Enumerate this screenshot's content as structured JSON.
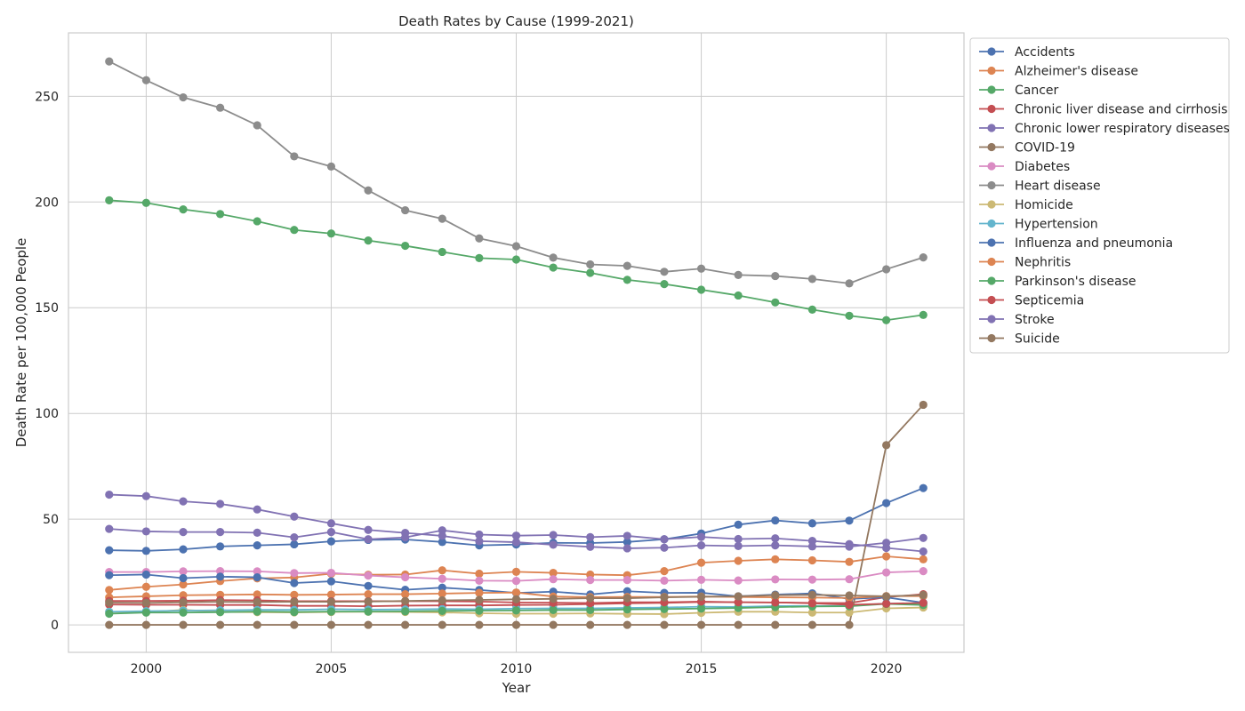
{
  "chart_data": {
    "type": "line",
    "title": "Death Rates by Cause (1999-2021)",
    "xlabel": "Year",
    "ylabel": "Death Rate per 100,000 People",
    "xlim": [
      1997.9,
      2022.1
    ],
    "ylim": [
      -13,
      280
    ],
    "x_ticks": [
      2000,
      2005,
      2010,
      2015,
      2020
    ],
    "y_ticks": [
      0,
      50,
      100,
      150,
      200,
      250
    ],
    "grid": true,
    "legend_position": "outside upper right",
    "x": [
      1999,
      2000,
      2001,
      2002,
      2003,
      2004,
      2005,
      2006,
      2007,
      2008,
      2009,
      2010,
      2011,
      2012,
      2013,
      2014,
      2015,
      2016,
      2017,
      2018,
      2019,
      2020,
      2021
    ],
    "series": [
      {
        "name": "Accidents",
        "color": "#4c72b0",
        "values": [
          35.3,
          35.0,
          35.7,
          37.1,
          37.6,
          38.1,
          39.5,
          40.2,
          40.4,
          39.2,
          37.6,
          38.0,
          38.8,
          38.7,
          39.2,
          40.5,
          43.2,
          47.4,
          49.4,
          48.0,
          49.3,
          57.6,
          64.7
        ]
      },
      {
        "name": "Alzheimer's disease",
        "color": "#dd8452",
        "values": [
          16.5,
          18.0,
          19.1,
          20.7,
          22.0,
          22.4,
          24.2,
          23.7,
          23.8,
          25.8,
          24.2,
          25.1,
          24.6,
          23.8,
          23.5,
          25.4,
          29.4,
          30.3,
          31.0,
          30.5,
          29.8,
          32.4,
          31.0
        ]
      },
      {
        "name": "Cancer",
        "color": "#55a868",
        "values": [
          200.8,
          199.6,
          196.5,
          194.3,
          190.9,
          186.8,
          185.1,
          181.8,
          179.3,
          176.4,
          173.5,
          172.8,
          169.0,
          166.5,
          163.2,
          161.2,
          158.5,
          155.8,
          152.5,
          149.1,
          146.2,
          144.1,
          146.6
        ]
      },
      {
        "name": "Chronic liver disease and cirrhosis",
        "color": "#c44e52",
        "values": [
          9.6,
          9.5,
          9.5,
          9.4,
          9.4,
          9.0,
          9.0,
          8.8,
          9.1,
          9.2,
          9.2,
          9.4,
          9.5,
          9.8,
          10.2,
          10.4,
          10.8,
          10.7,
          10.6,
          10.4,
          10.3,
          13.1,
          14.5
        ]
      },
      {
        "name": "Chronic lower respiratory diseases",
        "color": "#8172b3",
        "values": [
          45.4,
          44.2,
          43.9,
          43.9,
          43.6,
          41.4,
          43.9,
          40.5,
          41.4,
          44.7,
          42.7,
          42.2,
          42.5,
          41.5,
          42.1,
          40.5,
          41.6,
          40.6,
          40.9,
          39.7,
          38.2,
          36.4,
          34.7
        ]
      },
      {
        "name": "COVID-19",
        "color": "#937860",
        "values": [
          0,
          0,
          0,
          0,
          0,
          0,
          0,
          0,
          0,
          0,
          0,
          0,
          0,
          0,
          0,
          0,
          0,
          0,
          0,
          0,
          0,
          85.0,
          104.1
        ]
      },
      {
        "name": "Diabetes",
        "color": "#da8bc3",
        "values": [
          25.0,
          25.0,
          25.3,
          25.4,
          25.3,
          24.5,
          24.6,
          23.3,
          22.5,
          21.8,
          20.9,
          20.8,
          21.6,
          21.2,
          21.2,
          20.9,
          21.3,
          21.0,
          21.5,
          21.4,
          21.6,
          24.8,
          25.4
        ]
      },
      {
        "name": "Heart disease",
        "color": "#8c8c8c",
        "values": [
          266.5,
          257.6,
          249.5,
          244.6,
          236.3,
          221.6,
          216.8,
          205.5,
          196.1,
          192.1,
          182.8,
          179.1,
          173.7,
          170.5,
          169.8,
          167.0,
          168.5,
          165.5,
          165.0,
          163.6,
          161.5,
          168.2,
          173.8
        ]
      },
      {
        "name": "Homicide",
        "color": "#ccb974",
        "values": [
          6.2,
          5.9,
          7.1,
          6.1,
          6.0,
          5.9,
          6.1,
          6.2,
          6.1,
          5.9,
          5.5,
          5.3,
          5.3,
          5.4,
          5.2,
          5.1,
          5.7,
          6.2,
          6.2,
          5.8,
          5.8,
          7.8,
          8.2
        ]
      },
      {
        "name": "Hypertension",
        "color": "#64b5cd",
        "values": [
          6.2,
          6.5,
          6.7,
          6.9,
          7.1,
          7.1,
          7.4,
          7.2,
          7.3,
          7.5,
          7.4,
          7.7,
          7.8,
          7.8,
          8.0,
          8.2,
          8.6,
          8.5,
          8.9,
          8.9,
          9.0,
          10.1,
          10.0
        ]
      },
      {
        "name": "Influenza and pneumonia",
        "color": "#4c72b0",
        "values": [
          23.5,
          23.8,
          22.1,
          22.8,
          22.5,
          19.8,
          20.6,
          18.4,
          16.6,
          17.6,
          16.5,
          15.1,
          15.7,
          14.4,
          15.9,
          15.1,
          15.2,
          13.5,
          14.3,
          14.9,
          12.3,
          13.0,
          10.5
        ]
      },
      {
        "name": "Nephritis",
        "color": "#dd8452",
        "values": [
          13.0,
          13.5,
          14.0,
          14.2,
          14.4,
          14.2,
          14.3,
          14.5,
          14.5,
          14.8,
          15.1,
          15.3,
          13.4,
          13.1,
          13.2,
          13.2,
          13.4,
          13.2,
          13.0,
          12.9,
          12.7,
          13.6,
          13.6
        ]
      },
      {
        "name": "Parkinson's disease",
        "color": "#55a868",
        "values": [
          5.3,
          5.8,
          5.8,
          6.0,
          6.3,
          6.1,
          6.3,
          6.3,
          6.4,
          6.6,
          6.7,
          6.8,
          7.0,
          7.0,
          7.3,
          7.5,
          7.7,
          8.0,
          8.4,
          8.7,
          8.8,
          9.9,
          9.4
        ]
      },
      {
        "name": "Septicemia",
        "color": "#c44e52",
        "values": [
          11.3,
          11.3,
          11.4,
          11.7,
          11.6,
          11.2,
          11.2,
          11.2,
          11.2,
          11.2,
          11.0,
          10.6,
          10.5,
          10.3,
          10.7,
          10.7,
          11.0,
          10.7,
          10.6,
          10.2,
          9.5,
          10.0,
          10.4
        ]
      },
      {
        "name": "Stroke",
        "color": "#8172b3",
        "values": [
          61.6,
          60.9,
          58.4,
          57.2,
          54.6,
          51.2,
          48.0,
          44.9,
          43.5,
          42.1,
          39.6,
          39.1,
          37.9,
          36.9,
          36.2,
          36.5,
          37.6,
          37.3,
          37.6,
          37.1,
          37.0,
          38.8,
          41.1
        ]
      },
      {
        "name": "Suicide",
        "color": "#937860",
        "values": [
          10.5,
          10.4,
          10.7,
          10.9,
          10.8,
          10.9,
          10.9,
          11.0,
          11.3,
          11.6,
          11.8,
          12.1,
          12.3,
          12.6,
          12.6,
          13.0,
          13.3,
          13.5,
          14.0,
          14.2,
          13.9,
          13.5,
          14.1
        ]
      }
    ]
  }
}
